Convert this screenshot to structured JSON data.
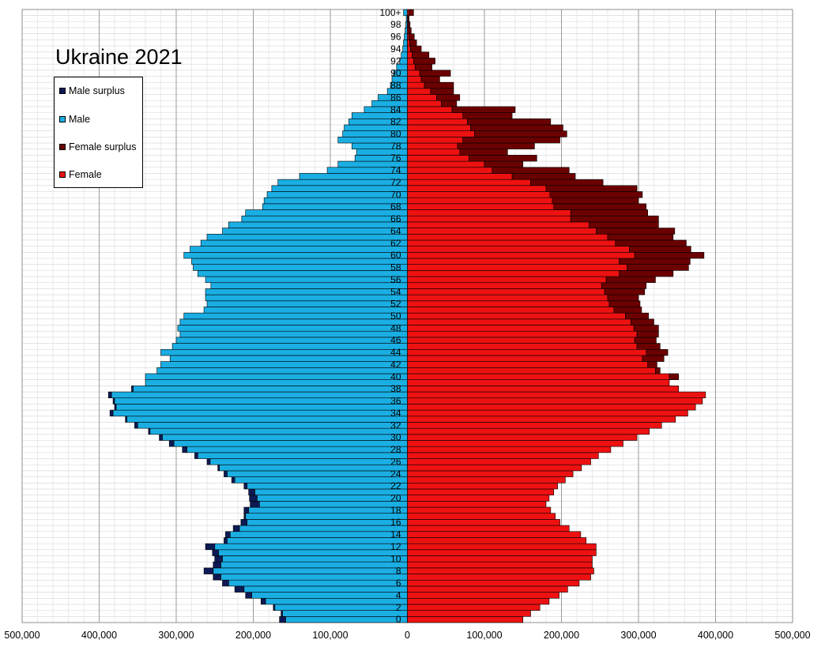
{
  "chart_data": {
    "type": "bar",
    "orientation": "horizontal",
    "title": "Ukraine 2021",
    "xlabel": "",
    "ylabel": "",
    "xlim": [
      -500000,
      500000
    ],
    "x_ticks": [
      -500000,
      -400000,
      -300000,
      -200000,
      -100000,
      0,
      100000,
      200000,
      300000,
      400000,
      500000
    ],
    "x_tick_labels": [
      "500,000",
      "400,000",
      "300,000",
      "200,000",
      "100,000",
      "0",
      "100,000",
      "200,000",
      "300,000",
      "400,000",
      "500,000"
    ],
    "y_tick_labels": [
      "0",
      "2",
      "4",
      "6",
      "8",
      "10",
      "12",
      "14",
      "16",
      "18",
      "20",
      "22",
      "24",
      "26",
      "28",
      "30",
      "32",
      "34",
      "36",
      "38",
      "40",
      "42",
      "44",
      "46",
      "48",
      "50",
      "52",
      "54",
      "56",
      "58",
      "60",
      "62",
      "64",
      "66",
      "68",
      "70",
      "72",
      "74",
      "76",
      "78",
      "80",
      "82",
      "84",
      "86",
      "88",
      "90",
      "92",
      "94",
      "96",
      "98",
      "100+"
    ],
    "legend_position": "top-left",
    "grid": true,
    "legend": [
      {
        "label": "Male surplus",
        "color": "#0d1a55"
      },
      {
        "label": "Male",
        "color": "#1aaee3"
      },
      {
        "label": "Female surplus",
        "color": "#6b0000"
      },
      {
        "label": "Female",
        "color": "#ee1111"
      }
    ],
    "ages": [
      "0",
      "1",
      "2",
      "3",
      "4",
      "5",
      "6",
      "7",
      "8",
      "9",
      "10",
      "11",
      "12",
      "13",
      "14",
      "15",
      "16",
      "17",
      "18",
      "19",
      "20",
      "21",
      "22",
      "23",
      "24",
      "25",
      "26",
      "27",
      "28",
      "29",
      "30",
      "31",
      "32",
      "33",
      "34",
      "35",
      "36",
      "37",
      "38",
      "39",
      "40",
      "41",
      "42",
      "43",
      "44",
      "45",
      "46",
      "47",
      "48",
      "49",
      "50",
      "51",
      "52",
      "53",
      "54",
      "55",
      "56",
      "57",
      "58",
      "59",
      "60",
      "61",
      "62",
      "63",
      "64",
      "65",
      "66",
      "67",
      "68",
      "69",
      "70",
      "71",
      "72",
      "73",
      "74",
      "75",
      "76",
      "77",
      "78",
      "79",
      "80",
      "81",
      "82",
      "83",
      "84",
      "85",
      "86",
      "87",
      "88",
      "89",
      "90",
      "91",
      "92",
      "93",
      "94",
      "95",
      "96",
      "97",
      "98",
      "99",
      "100+"
    ],
    "series": [
      {
        "name": "Male",
        "values": [
          158000,
          162000,
          172000,
          184000,
          202000,
          212000,
          232000,
          242000,
          252000,
          242000,
          240000,
          245000,
          250000,
          234000,
          230000,
          218000,
          208000,
          210000,
          206000,
          192000,
          195000,
          198000,
          208000,
          224000,
          234000,
          244000,
          256000,
          272000,
          286000,
          303000,
          318000,
          334000,
          350000,
          364000,
          382000,
          378000,
          380000,
          384000,
          356000,
          340000,
          340000,
          325000,
          320000,
          308000,
          320000,
          305000,
          300000,
          295000,
          298000,
          295000,
          290000,
          264000,
          260000,
          262000,
          262000,
          255000,
          262000,
          272000,
          278000,
          280000,
          290000,
          282000,
          268000,
          260000,
          240000,
          232000,
          215000,
          210000,
          188000,
          186000,
          182000,
          176000,
          168000,
          140000,
          104000,
          90000,
          68000,
          66000,
          72000,
          90000,
          84000,
          82000,
          76000,
          72000,
          56000,
          46000,
          38000,
          26000,
          22000,
          20000,
          18000,
          14000,
          10000,
          8000,
          6000,
          5000,
          4000,
          3000,
          2000,
          1500,
          5000
        ]
      },
      {
        "name": "Female",
        "values": [
          150000,
          160000,
          172000,
          184000,
          197000,
          208000,
          223000,
          238000,
          242000,
          240000,
          240000,
          245000,
          245000,
          232000,
          225000,
          210000,
          198000,
          192000,
          186000,
          180000,
          184000,
          190000,
          195000,
          205000,
          215000,
          226000,
          238000,
          248000,
          264000,
          280000,
          298000,
          314000,
          330000,
          348000,
          364000,
          374000,
          383000,
          387000,
          352000,
          340000,
          340000,
          322000,
          312000,
          305000,
          310000,
          298000,
          295000,
          298000,
          294000,
          290000,
          283000,
          268000,
          262000,
          260000,
          256000,
          252000,
          258000,
          275000,
          285000,
          275000,
          295000,
          288000,
          270000,
          260000,
          245000,
          236000,
          212000,
          212000,
          190000,
          188000,
          185000,
          180000,
          160000,
          136000,
          110000,
          100000,
          80000,
          68000,
          65000,
          72000,
          87000,
          82000,
          78000,
          72000,
          58000,
          44000,
          38000,
          30000,
          22000,
          18000,
          16000,
          10000,
          8000,
          6000,
          4000,
          3000,
          2000,
          1500,
          1000,
          800,
          2000
        ]
      },
      {
        "name": "Male surplus",
        "values": [
          8000,
          2000,
          2000,
          6000,
          8000,
          12000,
          8000,
          10000,
          12000,
          10000,
          10000,
          8000,
          12000,
          4000,
          6000,
          8000,
          8000,
          2000,
          6000,
          12000,
          10000,
          8000,
          4000,
          4000,
          4000,
          2000,
          4000,
          4000,
          6000,
          6000,
          4000,
          2000,
          4000,
          2000,
          4000,
          2000,
          2000,
          4000,
          2000,
          0,
          0,
          0,
          0,
          0,
          0,
          0,
          0,
          0,
          0,
          0,
          0,
          0,
          0,
          0,
          0,
          0,
          0,
          0,
          0,
          0,
          0,
          0,
          0,
          0,
          0,
          0,
          0,
          0,
          0,
          0,
          0,
          0,
          0,
          0,
          0,
          0,
          0,
          0,
          0,
          0,
          0,
          0,
          0,
          0,
          0,
          0,
          0,
          0,
          0,
          0,
          0,
          0,
          0,
          0,
          0,
          0,
          0,
          0,
          0,
          0,
          0
        ]
      },
      {
        "name": "Female surplus",
        "values": [
          0,
          0,
          0,
          0,
          0,
          0,
          0,
          0,
          0,
          0,
          0,
          0,
          0,
          0,
          0,
          0,
          0,
          0,
          0,
          0,
          0,
          0,
          0,
          0,
          0,
          0,
          0,
          0,
          0,
          0,
          0,
          0,
          0,
          0,
          0,
          0,
          0,
          0,
          0,
          0,
          12000,
          6000,
          12000,
          28000,
          28000,
          30000,
          28000,
          28000,
          32000,
          30000,
          30000,
          36000,
          40000,
          40000,
          52000,
          58000,
          64000,
          70000,
          80000,
          92000,
          90000,
          80000,
          92000,
          85000,
          102000,
          90000,
          114000,
          100000,
          120000,
          112000,
          120000,
          118000,
          94000,
          82000,
          100000,
          50000,
          88000,
          62000,
          100000,
          126000,
          120000,
          120000,
          108000,
          64000,
          82000,
          20000,
          30000,
          30000,
          38000,
          24000,
          40000,
          22000,
          28000,
          22000,
          14000,
          9000,
          7000,
          3500,
          2500,
          1500,
          6000
        ]
      }
    ]
  }
}
